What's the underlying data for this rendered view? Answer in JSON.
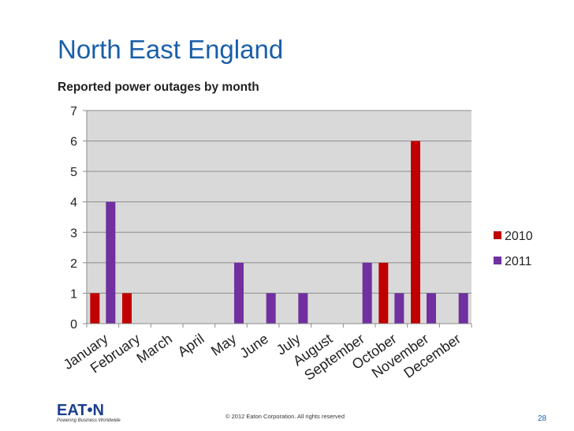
{
  "slide": {
    "title": "North East England",
    "subtitle": "Reported power outages by month",
    "logo_text": "EAT•N",
    "logo_tagline": "Powering Business Worldwide",
    "copyright": "© 2012 Eaton Corporation. All rights reserved",
    "page_number": "28"
  },
  "colors": {
    "series_2010": "#c00000",
    "series_2011": "#7030a0",
    "plot_background": "#d9d9d9",
    "gridline": "#8c8c8c",
    "title": "#1a5fa8"
  },
  "chart_data": {
    "type": "bar",
    "title": "",
    "xlabel": "",
    "ylabel": "",
    "categories": [
      "January",
      "February",
      "March",
      "April",
      "May",
      "June",
      "July",
      "August",
      "September",
      "October",
      "November",
      "December"
    ],
    "series": [
      {
        "name": "2010",
        "values": [
          1,
          1,
          0,
          0,
          0,
          0,
          0,
          0,
          0,
          2,
          6,
          0
        ]
      },
      {
        "name": "2011",
        "values": [
          4,
          0,
          0,
          0,
          2,
          1,
          1,
          0,
          2,
          1,
          1,
          1
        ]
      }
    ],
    "ylim": [
      0,
      7
    ],
    "yticks": [
      "0",
      "1",
      "2",
      "3",
      "4",
      "5",
      "6",
      "7"
    ],
    "grid": true,
    "legend_position": "right"
  }
}
